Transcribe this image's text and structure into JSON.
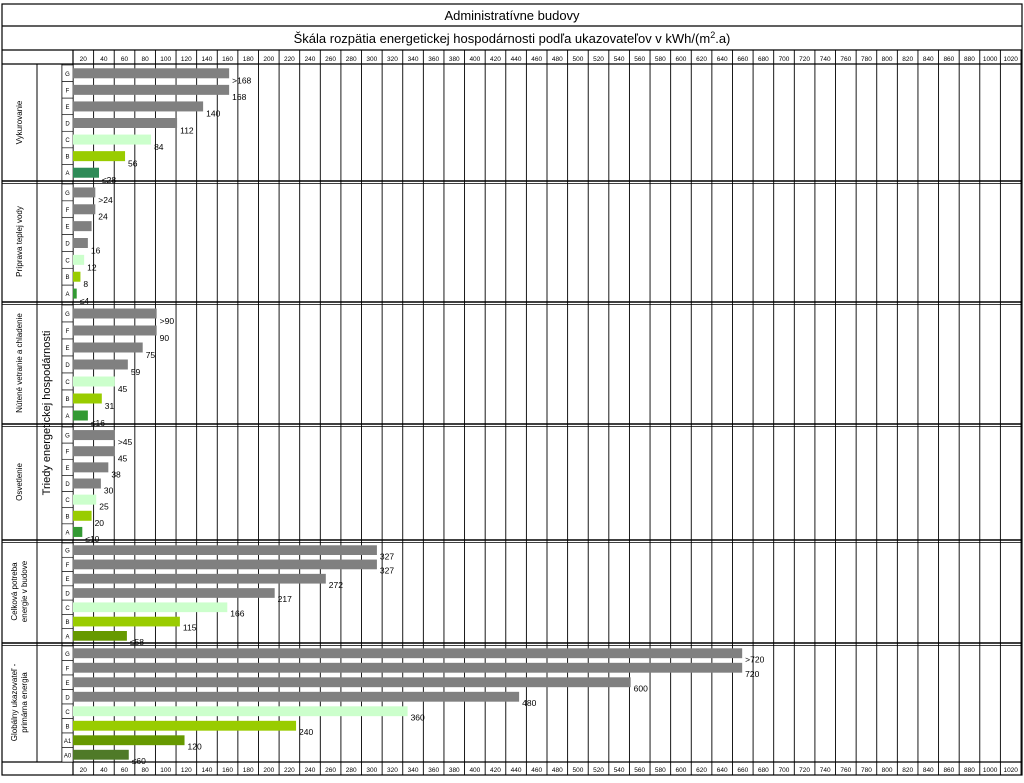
{
  "title": "Administratívne budovy",
  "subtitle_main": "Škála rozpätia energetickej hospodárnosti podľa ukazovateľov v kWh/(m",
  "subtitle_sup": "2",
  "subtitle_end": ".a)",
  "y_axis_label": "Triedy energetickej hospodárnosti",
  "colors": {
    "gray": "#808080",
    "class_C": "#ccffcc",
    "class_B": "#99cc00",
    "class_A": "#339933",
    "class_A_dark": "#2e8b57",
    "class_A1": "#669900",
    "class_A0": "#4f7a28"
  },
  "chart_data": {
    "type": "bar",
    "orientation": "horizontal",
    "xlim": [
      0,
      1020
    ],
    "x_ticks": [
      20,
      40,
      60,
      80,
      100,
      120,
      140,
      160,
      180,
      200,
      220,
      240,
      260,
      280,
      300,
      320,
      340,
      360,
      380,
      400,
      420,
      440,
      460,
      480,
      500,
      520,
      540,
      560,
      580,
      600,
      620,
      640,
      660,
      680,
      700,
      720,
      740,
      760,
      780,
      800,
      820,
      840,
      860,
      880,
      1000,
      1020
    ],
    "panels": [
      {
        "label": [
          "Vykurovanie"
        ],
        "rows": [
          {
            "cls": "G",
            "value": 168,
            "label": ">168",
            "color": "gray"
          },
          {
            "cls": "F",
            "value": 168,
            "label": "168",
            "color": "gray"
          },
          {
            "cls": "E",
            "value": 140,
            "label": "140",
            "color": "gray"
          },
          {
            "cls": "D",
            "value": 112,
            "label": "112",
            "color": "gray"
          },
          {
            "cls": "C",
            "value": 84,
            "label": "84",
            "color": "class_C"
          },
          {
            "cls": "B",
            "value": 56,
            "label": "56",
            "color": "class_B"
          },
          {
            "cls": "A",
            "value": 28,
            "label": "≤28",
            "color": "class_A_dark"
          }
        ]
      },
      {
        "label": [
          "Príprava teplej vody"
        ],
        "rows": [
          {
            "cls": "G",
            "value": 24,
            "label": ">24",
            "color": "gray"
          },
          {
            "cls": "F",
            "value": 24,
            "label": "24",
            "color": "gray"
          },
          {
            "cls": "E",
            "value": 20,
            "label": "",
            "color": "gray"
          },
          {
            "cls": "D",
            "value": 16,
            "label": "16",
            "color": "gray"
          },
          {
            "cls": "C",
            "value": 12,
            "label": "12",
            "color": "class_C"
          },
          {
            "cls": "B",
            "value": 8,
            "label": "8",
            "color": "class_B"
          },
          {
            "cls": "A",
            "value": 4,
            "label": "≤4",
            "color": "class_A"
          }
        ]
      },
      {
        "label": [
          "Nútené vetranie a chladenie"
        ],
        "rows": [
          {
            "cls": "G",
            "value": 90,
            "label": ">90",
            "color": "gray"
          },
          {
            "cls": "F",
            "value": 90,
            "label": "90",
            "color": "gray"
          },
          {
            "cls": "E",
            "value": 75,
            "label": "75",
            "color": "gray"
          },
          {
            "cls": "D",
            "value": 59,
            "label": "59",
            "color": "gray"
          },
          {
            "cls": "C",
            "value": 45,
            "label": "45",
            "color": "class_C"
          },
          {
            "cls": "B",
            "value": 31,
            "label": "31",
            "color": "class_B"
          },
          {
            "cls": "A",
            "value": 16,
            "label": "≤16",
            "color": "class_A"
          }
        ]
      },
      {
        "label": [
          "Osvetlenie"
        ],
        "rows": [
          {
            "cls": "G",
            "value": 45,
            "label": ">45",
            "color": "gray"
          },
          {
            "cls": "F",
            "value": 45,
            "label": "45",
            "color": "gray"
          },
          {
            "cls": "E",
            "value": 38,
            "label": "38",
            "color": "gray"
          },
          {
            "cls": "D",
            "value": 30,
            "label": "30",
            "color": "gray"
          },
          {
            "cls": "C",
            "value": 25,
            "label": "25",
            "color": "class_C"
          },
          {
            "cls": "B",
            "value": 20,
            "label": "20",
            "color": "class_B"
          },
          {
            "cls": "A",
            "value": 10,
            "label": "≤10",
            "color": "class_A"
          }
        ]
      },
      {
        "label": [
          "Celková potreba",
          "energie v budove"
        ],
        "rows": [
          {
            "cls": "G",
            "value": 327,
            "label": "327",
            "color": "gray"
          },
          {
            "cls": "F",
            "value": 327,
            "label": "327",
            "color": "gray"
          },
          {
            "cls": "E",
            "value": 272,
            "label": "272",
            "color": "gray"
          },
          {
            "cls": "D",
            "value": 217,
            "label": "217",
            "color": "gray"
          },
          {
            "cls": "C",
            "value": 166,
            "label": "166",
            "color": "class_C"
          },
          {
            "cls": "B",
            "value": 115,
            "label": "115",
            "color": "class_B"
          },
          {
            "cls": "A",
            "value": 58,
            "label": "≤58",
            "color": "class_A1"
          }
        ]
      },
      {
        "label": [
          "Globálny ukazovateľ -",
          "primárna energia"
        ],
        "rows": [
          {
            "cls": "G",
            "value": 720,
            "label": ">720",
            "color": "gray"
          },
          {
            "cls": "F",
            "value": 720,
            "label": "720",
            "color": "gray"
          },
          {
            "cls": "E",
            "value": 600,
            "label": "600",
            "color": "gray"
          },
          {
            "cls": "D",
            "value": 480,
            "label": "480",
            "color": "gray"
          },
          {
            "cls": "C",
            "value": 360,
            "label": "360",
            "color": "class_C"
          },
          {
            "cls": "B",
            "value": 240,
            "label": "240",
            "color": "class_B"
          },
          {
            "cls": "A1",
            "value": 120,
            "label": "120",
            "color": "class_A1"
          },
          {
            "cls": "A0",
            "value": 60,
            "label": "≤60",
            "color": "class_A0"
          }
        ]
      }
    ]
  }
}
